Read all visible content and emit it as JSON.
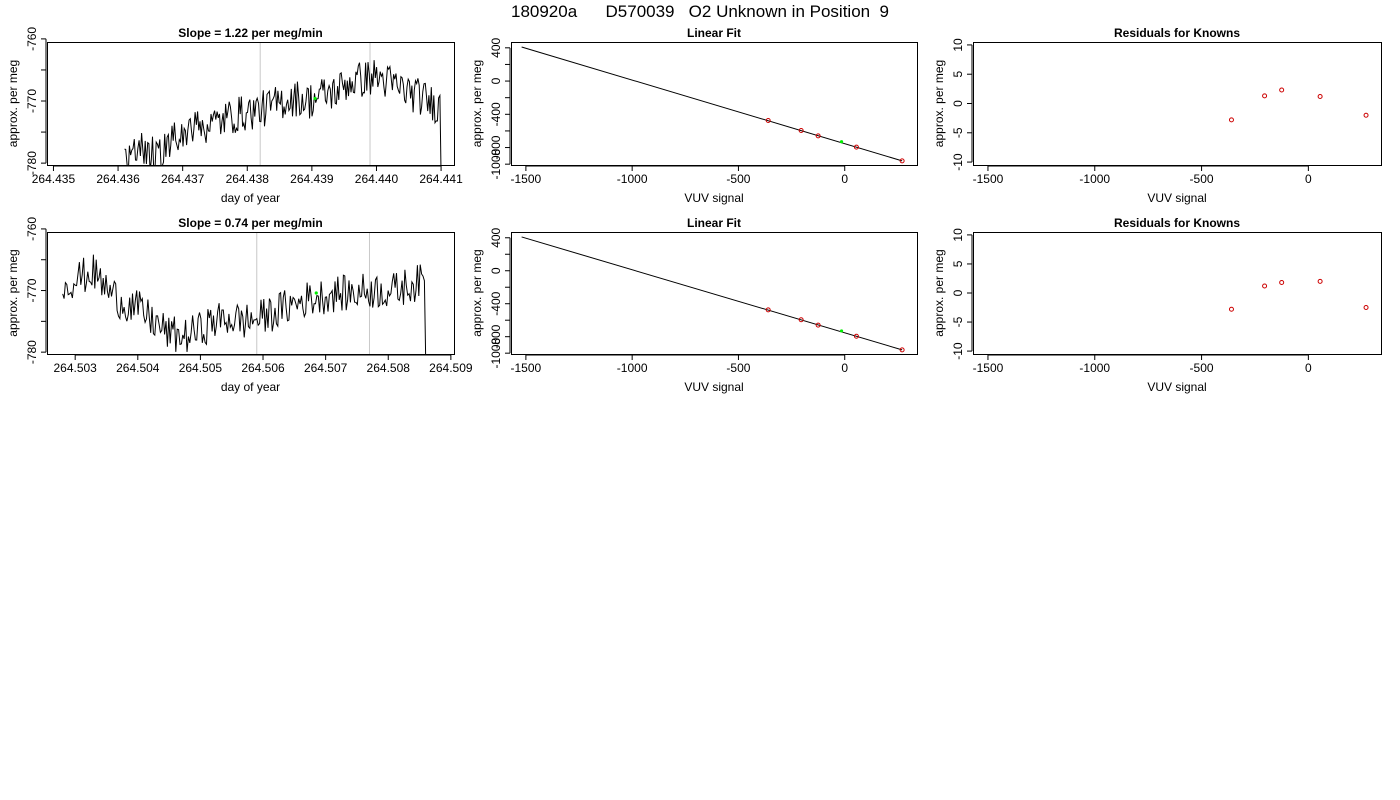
{
  "page_title": "180920a      D570039   O2 Unknown in Position  9",
  "colors": {
    "trace": "#000000",
    "marker_window": "#c8c8c8",
    "unknown_point": "#00ee00",
    "known_point": "#cc0000"
  },
  "chart_data": [
    {
      "type": "line",
      "title": "Slope =  1.22  per meg/min",
      "xlabel": "day of year",
      "ylabel": "approx. per meg",
      "xlim": [
        264.4349,
        264.4412
      ],
      "ylim": [
        -780.3,
        -760.5
      ],
      "xticks": [
        264.435,
        264.436,
        264.437,
        264.438,
        264.439,
        264.44,
        264.441
      ],
      "xtick_labels": [
        "264.435",
        "264.436",
        "264.437",
        "264.438",
        "264.439",
        "264.440",
        "264.441"
      ],
      "yticks": [
        -760,
        -765,
        -770,
        -775,
        -780
      ],
      "ytick_labels": [
        "-760",
        "",
        "-770",
        "",
        "-780"
      ],
      "vlines": [
        264.4382,
        264.4399
      ],
      "x_start": 264.4361,
      "x_end": 264.441,
      "trace_base": [
        -780.3,
        -778,
        -778.5,
        -777.5,
        -776,
        -775,
        -774,
        -773.5,
        -772.5,
        -772,
        -771.5,
        -771,
        -770,
        -769.5,
        -770,
        -769,
        -768.5,
        -767,
        -766.5,
        -766,
        -767,
        -768,
        -769,
        -770,
        -771
      ],
      "unknown_point": {
        "x": 264.43905,
        "y": -769.6
      }
    },
    {
      "type": "line",
      "title": "Linear Fit",
      "xlabel": "VUV signal",
      "ylabel": "approx. per meg",
      "xlim": [
        -1570,
        340
      ],
      "ylim": [
        -1010,
        470
      ],
      "xticks": [
        -1500,
        -1000,
        -500,
        0
      ],
      "xtick_labels": [
        "-1500",
        "-1000",
        "-500",
        "0"
      ],
      "yticks": [
        400,
        200,
        0,
        -200,
        -400,
        -600,
        -800,
        -1000
      ],
      "ytick_labels": [
        "400",
        "",
        "0",
        "",
        "-400",
        "",
        "-800",
        "-1000"
      ],
      "fit_line": {
        "x": [
          -1520,
          270
        ],
        "y": [
          410,
          -960
        ]
      },
      "knowns": {
        "x": [
          -360,
          -205,
          -125,
          55,
          270
        ],
        "y": [
          -475,
          -595,
          -660,
          -795,
          -960
        ]
      },
      "unknown_point": {
        "x": -15,
        "y": -730
      }
    },
    {
      "type": "scatter",
      "title": "Residuals for Knowns",
      "xlabel": "VUV signal",
      "ylabel": "approx. per meg",
      "xlim": [
        -1570,
        340
      ],
      "ylim": [
        -10.5,
        10.5
      ],
      "xticks": [
        -1500,
        -1000,
        -500,
        0
      ],
      "xtick_labels": [
        "-1500",
        "-1000",
        "-500",
        "0"
      ],
      "yticks": [
        10,
        5,
        0,
        -5,
        -10
      ],
      "ytick_labels": [
        "10",
        "5",
        "0",
        "-5",
        "-10"
      ],
      "points": {
        "x": [
          -360,
          -205,
          -125,
          55,
          270
        ],
        "y": [
          -2.8,
          1.3,
          2.3,
          1.2,
          -2.0
        ]
      }
    },
    {
      "type": "line",
      "title": "Slope =  0.74  per meg/min",
      "xlabel": "day of year",
      "ylabel": "approx. per meg",
      "xlim": [
        264.50255,
        264.50905
      ],
      "ylim": [
        -780.3,
        -760.5
      ],
      "xticks": [
        264.503,
        264.504,
        264.505,
        264.506,
        264.507,
        264.508,
        264.509
      ],
      "xtick_labels": [
        "264.503",
        "264.504",
        "264.505",
        "264.506",
        "264.507",
        "264.508",
        "264.509"
      ],
      "yticks": [
        -760,
        -765,
        -770,
        -775,
        -780
      ],
      "ytick_labels": [
        "-760",
        "",
        "-770",
        "",
        "-780"
      ],
      "vlines": [
        264.5059,
        264.5077
      ],
      "x_start": 264.5028,
      "x_end": 264.5086,
      "trace_base": [
        -769,
        -768,
        -767,
        -770,
        -772,
        -773,
        -775,
        -777,
        -777.5,
        -776.5,
        -775,
        -774.5,
        -775,
        -774.5,
        -773.5,
        -772.5,
        -771.5,
        -771,
        -770.5,
        -770.5,
        -770,
        -770,
        -770,
        -769,
        -768.5
      ],
      "unknown_point": {
        "x": 264.50685,
        "y": -770.4
      }
    },
    {
      "type": "line",
      "title": "Linear Fit",
      "xlabel": "VUV signal",
      "ylabel": "approx. per meg",
      "xlim": [
        -1570,
        340
      ],
      "ylim": [
        -1010,
        470
      ],
      "xticks": [
        -1500,
        -1000,
        -500,
        0
      ],
      "xtick_labels": [
        "-1500",
        "-1000",
        "-500",
        "0"
      ],
      "yticks": [
        400,
        200,
        0,
        -200,
        -400,
        -600,
        -800,
        -1000
      ],
      "ytick_labels": [
        "400",
        "",
        "0",
        "",
        "-400",
        "",
        "-800",
        "-1000"
      ],
      "fit_line": {
        "x": [
          -1520,
          270
        ],
        "y": [
          410,
          -960
        ]
      },
      "knowns": {
        "x": [
          -360,
          -205,
          -125,
          55,
          270
        ],
        "y": [
          -475,
          -595,
          -660,
          -795,
          -960
        ]
      },
      "unknown_point": {
        "x": -15,
        "y": -730
      }
    },
    {
      "type": "scatter",
      "title": "Residuals for Knowns",
      "xlabel": "VUV signal",
      "ylabel": "approx. per meg",
      "xlim": [
        -1570,
        340
      ],
      "ylim": [
        -10.5,
        10.5
      ],
      "xticks": [
        -1500,
        -1000,
        -500,
        0
      ],
      "xtick_labels": [
        "-1500",
        "-1000",
        "-500",
        "0"
      ],
      "yticks": [
        10,
        5,
        0,
        -5,
        -10
      ],
      "ytick_labels": [
        "10",
        "5",
        "0",
        "-5",
        "-10"
      ],
      "points": {
        "x": [
          -360,
          -205,
          -125,
          55,
          270
        ],
        "y": [
          -2.8,
          1.2,
          1.8,
          2.0,
          -2.5
        ]
      }
    }
  ]
}
